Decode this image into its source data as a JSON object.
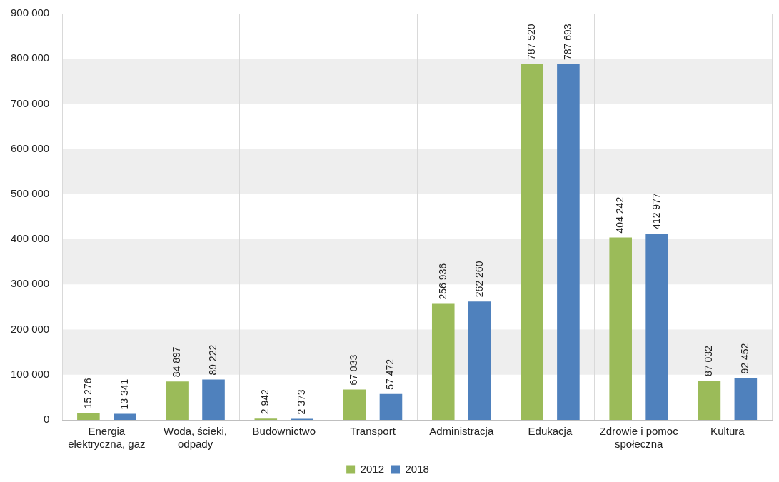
{
  "chart_data": {
    "type": "bar",
    "categories": [
      "Energia elektryczna, gaz",
      "Woda, ścieki, odpady",
      "Budownictwo",
      "Transport",
      "Administracja",
      "Edukacja",
      "Zdrowie i pomoc społeczna",
      "Kultura"
    ],
    "series": [
      {
        "name": "2012",
        "color": "#9bbb59",
        "values": [
          15276,
          84897,
          2942,
          67033,
          256936,
          787520,
          404242,
          87032
        ],
        "value_labels": [
          "15 276",
          "84 897",
          "2 942",
          "67 033",
          "256 936",
          "787 520",
          "404 242",
          "87 032"
        ]
      },
      {
        "name": "2018",
        "color": "#4f81bd",
        "values": [
          13341,
          89222,
          2373,
          57472,
          262260,
          787693,
          412977,
          92452
        ],
        "value_labels": [
          "13 341",
          "89 222",
          "2 373",
          "57 472",
          "262 260",
          "787 693",
          "412 977",
          "92 452"
        ]
      }
    ],
    "ylim": [
      0,
      900000
    ],
    "yticks": [
      {
        "value": 0,
        "label": "0"
      },
      {
        "value": 100000,
        "label": "100 000"
      },
      {
        "value": 200000,
        "label": "200 000"
      },
      {
        "value": 300000,
        "label": "300 000"
      },
      {
        "value": 400000,
        "label": "400 000"
      },
      {
        "value": 500000,
        "label": "500 000"
      },
      {
        "value": 600000,
        "label": "600 000"
      },
      {
        "value": 700000,
        "label": "700 000"
      },
      {
        "value": 800000,
        "label": "800 000"
      },
      {
        "value": 900000,
        "label": "900 000"
      }
    ],
    "grid": true,
    "legend": "bottom"
  }
}
